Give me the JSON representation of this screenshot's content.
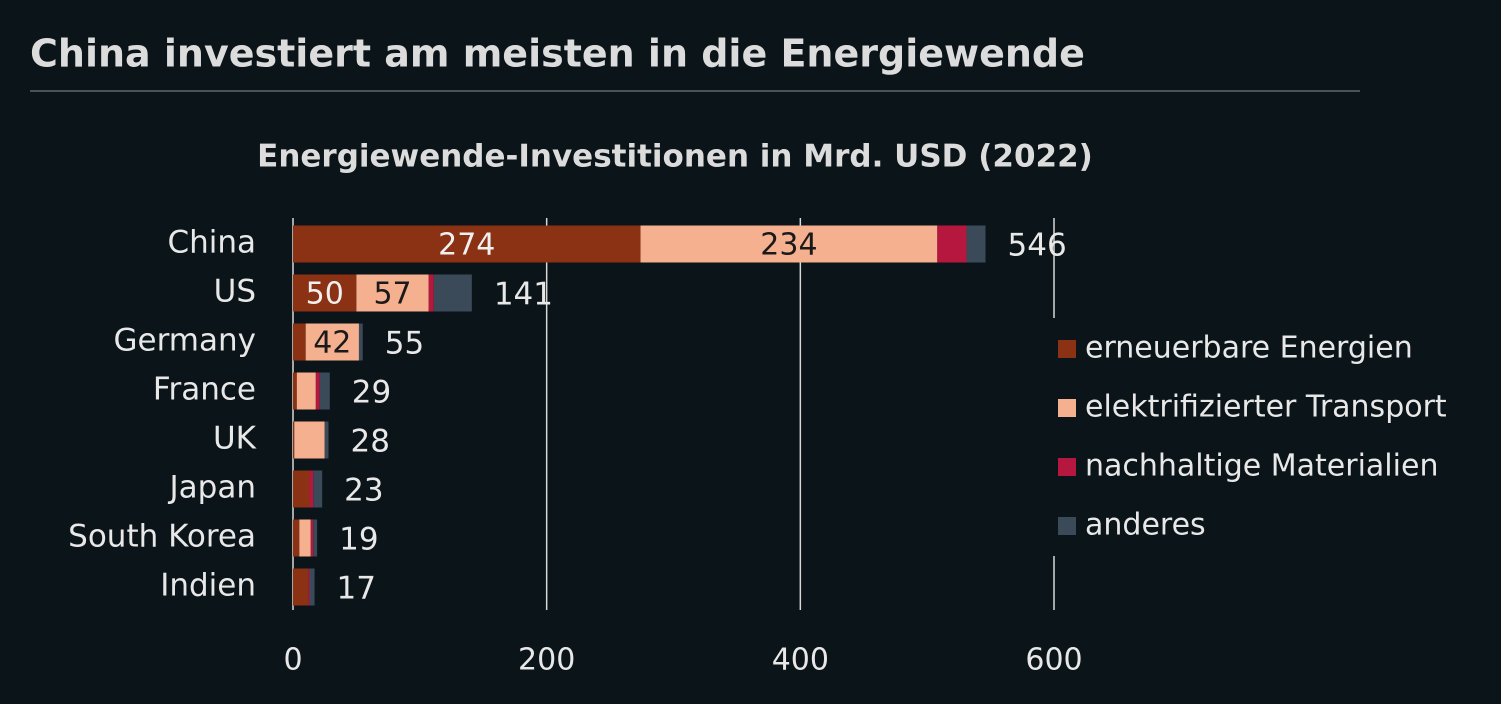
{
  "chart_data": {
    "type": "stacked-bar-horizontal",
    "title": "China investiert am meisten in die Energiewende",
    "subtitle": "Energiewende-Investitionen in Mrd. USD (2022)",
    "categories": [
      "China",
      "US",
      "Germany",
      "France",
      "UK",
      "Japan",
      "South Korea",
      "Indien"
    ],
    "series": [
      {
        "name": "erneuerbare Energien",
        "color": "#8b3214",
        "values": [
          274,
          50,
          10,
          3,
          1,
          13,
          5,
          12
        ]
      },
      {
        "name": "elektrifizierter Transport",
        "color": "#f5b090",
        "values": [
          234,
          57,
          42,
          15,
          24,
          0,
          9,
          0
        ]
      },
      {
        "name": "nachhaltige Materialien",
        "color": "#b5173e",
        "values": [
          23,
          4,
          0,
          3,
          0,
          3,
          2,
          1
        ]
      },
      {
        "name": "anderes",
        "color": "#3a4a58",
        "values": [
          15,
          30,
          3,
          8,
          3,
          7,
          3,
          4
        ]
      }
    ],
    "totals": [
      546,
      141,
      55,
      29,
      28,
      23,
      19,
      17
    ],
    "xlim": [
      0,
      600
    ],
    "xticks": [
      0,
      200,
      400,
      600
    ],
    "grid": true,
    "legend": "right"
  }
}
